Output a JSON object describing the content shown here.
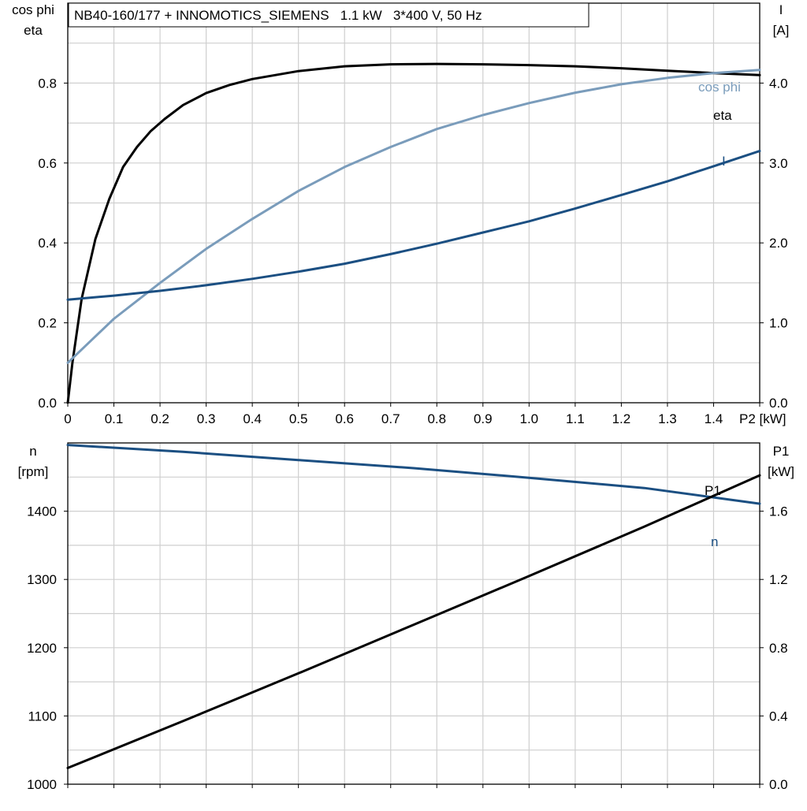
{
  "title": "NB40-160/177 + INNOMOTICS_SIEMENS   1.1 kW   3*400 V, 50 Hz",
  "chart_data": [
    {
      "type": "line",
      "xlabel": "P2 [kW]",
      "xlim": [
        0,
        1.5
      ],
      "x_ticks": [
        "0",
        "0.1",
        "0.2",
        "0.3",
        "0.4",
        "0.5",
        "0.6",
        "0.7",
        "0.8",
        "0.9",
        "1.0",
        "1.1",
        "1.2",
        "1.3",
        "1.4",
        "P2 [kW]"
      ],
      "left_axis": {
        "label_line1": "cos phi",
        "label_line2": "eta",
        "ylim": [
          0,
          1.0
        ],
        "ticks": [
          {
            "v": 0.0,
            "label": "0.0"
          },
          {
            "v": 0.2,
            "label": "0.2"
          },
          {
            "v": 0.4,
            "label": "0.4"
          },
          {
            "v": 0.6,
            "label": "0.6"
          },
          {
            "v": 0.8,
            "label": "0.8"
          }
        ]
      },
      "right_axis": {
        "label_line1": "I",
        "label_line2": "[A]",
        "ylim": [
          0,
          5.0
        ],
        "ticks": [
          {
            "v": 0.0,
            "label": "0.0"
          },
          {
            "v": 1.0,
            "label": "1.0"
          },
          {
            "v": 2.0,
            "label": "2.0"
          },
          {
            "v": 3.0,
            "label": "3.0"
          },
          {
            "v": 4.0,
            "label": "4.0"
          }
        ]
      },
      "series": [
        {
          "name": "eta",
          "axis": "left",
          "color": "#000000",
          "x": [
            0.0,
            0.01,
            0.03,
            0.06,
            0.09,
            0.12,
            0.15,
            0.18,
            0.21,
            0.25,
            0.3,
            0.35,
            0.4,
            0.5,
            0.6,
            0.7,
            0.8,
            0.9,
            1.0,
            1.1,
            1.2,
            1.3,
            1.4,
            1.5
          ],
          "y": [
            0.0,
            0.1,
            0.26,
            0.41,
            0.51,
            0.59,
            0.64,
            0.68,
            0.71,
            0.745,
            0.775,
            0.795,
            0.81,
            0.83,
            0.842,
            0.847,
            0.848,
            0.847,
            0.845,
            0.842,
            0.837,
            0.831,
            0.825,
            0.82
          ]
        },
        {
          "name": "cos phi",
          "axis": "left",
          "color": "#7a9cbb",
          "x": [
            0.0,
            0.1,
            0.2,
            0.3,
            0.4,
            0.5,
            0.6,
            0.7,
            0.8,
            0.9,
            1.0,
            1.1,
            1.2,
            1.3,
            1.4,
            1.5
          ],
          "y": [
            0.1,
            0.21,
            0.3,
            0.385,
            0.46,
            0.53,
            0.59,
            0.64,
            0.685,
            0.72,
            0.75,
            0.776,
            0.797,
            0.813,
            0.825,
            0.833
          ]
        },
        {
          "name": "I",
          "axis": "right",
          "color": "#1b4f82",
          "x": [
            0.0,
            0.1,
            0.2,
            0.3,
            0.4,
            0.5,
            0.6,
            0.7,
            0.8,
            0.9,
            1.0,
            1.1,
            1.2,
            1.3,
            1.4,
            1.5
          ],
          "y": [
            1.29,
            1.34,
            1.4,
            1.47,
            1.55,
            1.64,
            1.74,
            1.86,
            1.99,
            2.13,
            2.27,
            2.43,
            2.6,
            2.77,
            2.96,
            3.15
          ]
        }
      ]
    },
    {
      "type": "line",
      "xlim": [
        0,
        1.5
      ],
      "left_axis": {
        "label_line1": "n",
        "label_line2": "[rpm]",
        "ylim": [
          1000,
          1500
        ],
        "ticks": [
          {
            "v": 1000,
            "label": "1000"
          },
          {
            "v": 1100,
            "label": "1100"
          },
          {
            "v": 1200,
            "label": "1200"
          },
          {
            "v": 1300,
            "label": "1300"
          },
          {
            "v": 1400,
            "label": "1400"
          }
        ]
      },
      "right_axis": {
        "label_line1": "P1",
        "label_line2": "[kW]",
        "ylim": [
          0,
          2.0
        ],
        "ticks": [
          {
            "v": 0.0,
            "label": "0.0"
          },
          {
            "v": 0.4,
            "label": "0.4"
          },
          {
            "v": 0.8,
            "label": "0.8"
          },
          {
            "v": 1.2,
            "label": "1.2"
          },
          {
            "v": 1.6,
            "label": "1.6"
          }
        ]
      },
      "series": [
        {
          "name": "n",
          "axis": "left",
          "color": "#1b4f82",
          "x": [
            0.0,
            0.25,
            0.5,
            0.75,
            1.0,
            1.25,
            1.5
          ],
          "y": [
            1497,
            1487,
            1475,
            1463,
            1449,
            1434,
            1411
          ]
        },
        {
          "name": "P1",
          "axis": "right",
          "color": "#000000",
          "x": [
            0.0,
            0.25,
            0.5,
            0.75,
            1.0,
            1.25,
            1.5
          ],
          "y": [
            0.095,
            0.37,
            0.65,
            0.935,
            1.22,
            1.51,
            1.81
          ]
        }
      ]
    }
  ]
}
